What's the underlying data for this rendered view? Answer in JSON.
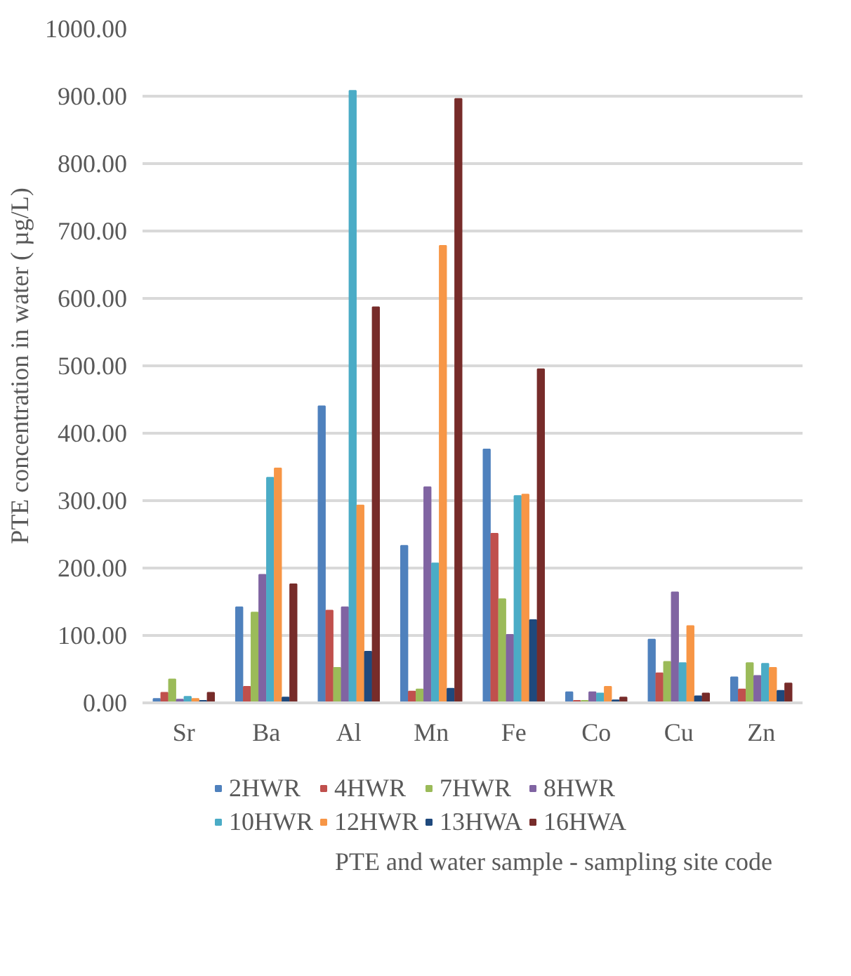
{
  "chart_data": {
    "type": "bar",
    "ylabel": "PTE concentration in water ( µg/L)",
    "xlabel": "PTE and  water sample - sampling site code",
    "categories": [
      "Sr",
      "Ba",
      "Al",
      "Mn",
      "Fe",
      "Co",
      "Cu",
      "Zn"
    ],
    "series": [
      {
        "name": "2HWR",
        "color": "#4f81bd",
        "values": [
          6,
          142,
          440,
          233,
          376,
          16,
          94,
          38
        ]
      },
      {
        "name": "4HWR",
        "color": "#c0504d",
        "values": [
          15,
          24,
          137,
          17,
          251,
          3,
          44,
          20
        ]
      },
      {
        "name": "7HWR",
        "color": "#9bbb59",
        "values": [
          35,
          134,
          52,
          20,
          154,
          3,
          61,
          59
        ]
      },
      {
        "name": "8HWR",
        "color": "#8064a2",
        "values": [
          5,
          190,
          142,
          320,
          101,
          16,
          164,
          40
        ]
      },
      {
        "name": "10HWR",
        "color": "#4bacc6",
        "values": [
          9,
          334,
          908,
          207,
          307,
          14,
          59,
          58
        ]
      },
      {
        "name": "12HWR",
        "color": "#f79646",
        "values": [
          6,
          348,
          293,
          678,
          309,
          24,
          114,
          52
        ]
      },
      {
        "name": "13HWA",
        "color": "#1f497d",
        "values": [
          3,
          8,
          76,
          21,
          123,
          4,
          10,
          18
        ]
      },
      {
        "name": "16HWA",
        "color": "#772c2a",
        "values": [
          15,
          176,
          587,
          896,
          495,
          8,
          14,
          29
        ]
      }
    ],
    "ylim": [
      0,
      1000
    ],
    "yticks": [
      {
        "value": 0,
        "label": "0.00"
      },
      {
        "value": 100,
        "label": "100.00"
      },
      {
        "value": 200,
        "label": "200.00"
      },
      {
        "value": 300,
        "label": "300.00"
      },
      {
        "value": 400,
        "label": "400.00"
      },
      {
        "value": 500,
        "label": "500.00"
      },
      {
        "value": 600,
        "label": "600.00"
      },
      {
        "value": 700,
        "label": "700.00"
      },
      {
        "value": 800,
        "label": "800.00"
      },
      {
        "value": 900,
        "label": "900.00"
      },
      {
        "value": 1000,
        "label": "1000.00"
      }
    ],
    "grid": "y",
    "legend": "bottom"
  }
}
